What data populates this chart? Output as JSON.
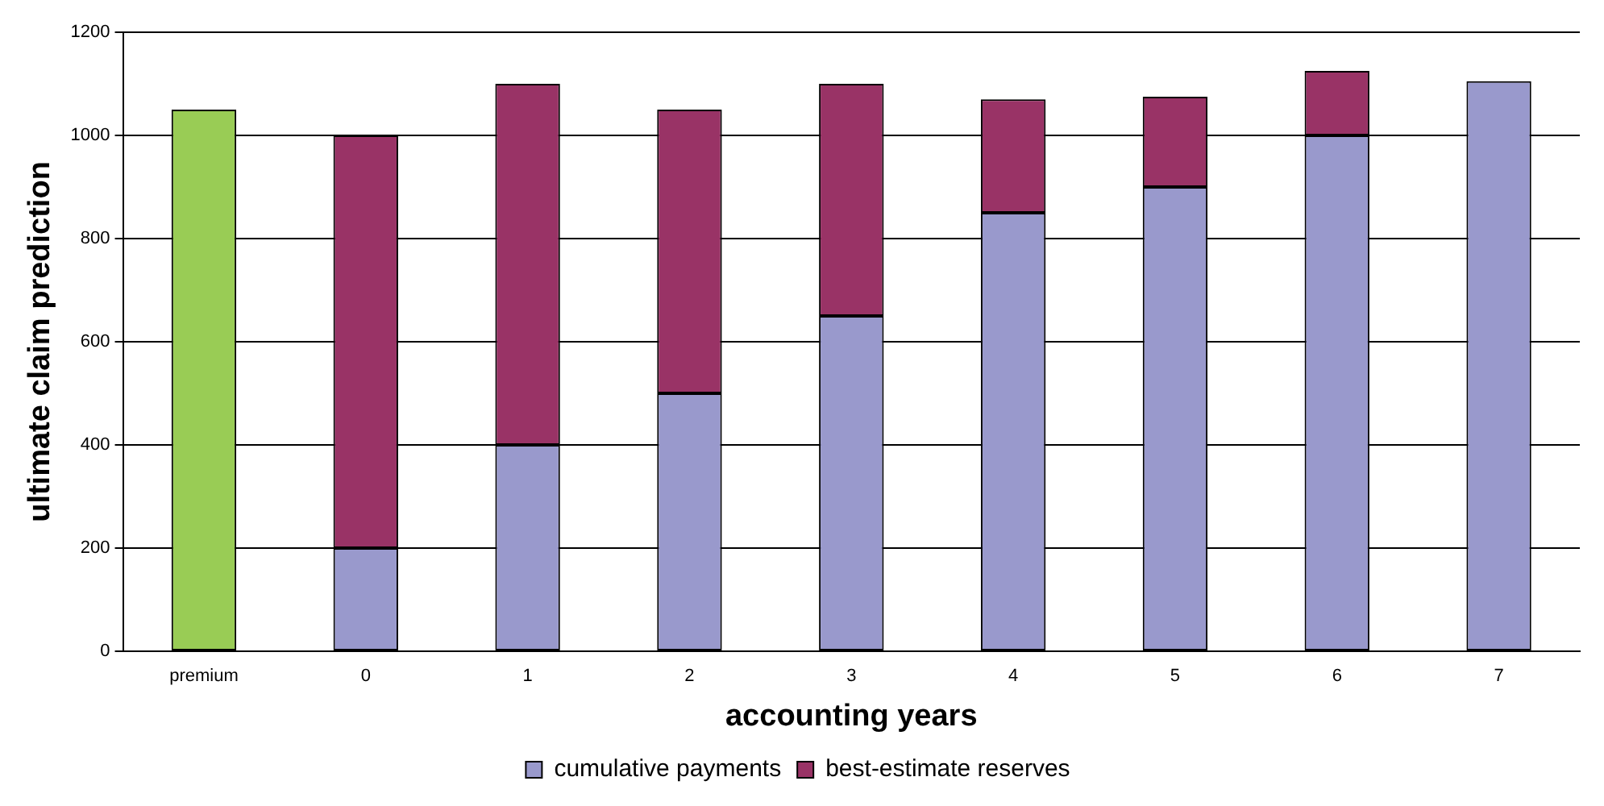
{
  "chart_data": {
    "type": "bar",
    "stacked": true,
    "xlabel": "accounting years",
    "ylabel": "ultimate claim prediction",
    "categories": [
      "premium",
      "0",
      "1",
      "2",
      "3",
      "4",
      "5",
      "6",
      "7"
    ],
    "series": [
      {
        "name": "cumulative payments",
        "color": "#9999cc",
        "colors": [
          "#99cc55",
          "#9999cc",
          "#9999cc",
          "#9999cc",
          "#9999cc",
          "#9999cc",
          "#9999cc",
          "#9999cc",
          "#9999cc"
        ],
        "values": [
          1050,
          200,
          400,
          500,
          650,
          850,
          900,
          1000,
          1105
        ]
      },
      {
        "name": "best-estimate reserves",
        "color": "#993366",
        "values": [
          null,
          800,
          700,
          550,
          450,
          220,
          175,
          125,
          null
        ]
      }
    ],
    "ylim": [
      0,
      1200
    ],
    "yticks": [
      0,
      200,
      400,
      600,
      800,
      1000,
      1200
    ],
    "grid": "y",
    "legend": "bottom"
  }
}
